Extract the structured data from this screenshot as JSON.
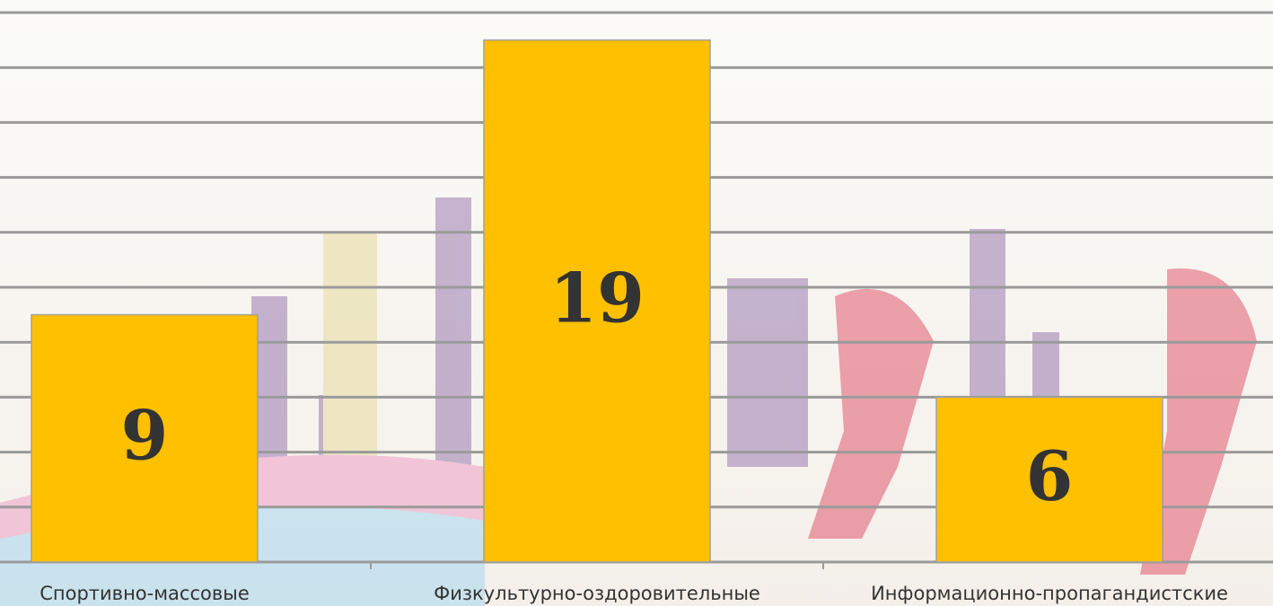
{
  "chart_data": {
    "type": "bar",
    "categories": [
      "Спортивно-массовые",
      "Физкультурно-оздоровительные",
      "Информационно-пропагандистские"
    ],
    "values": [
      9,
      19,
      6
    ],
    "color": "#ffc000",
    "ylim": [
      0,
      20
    ],
    "yticks": [
      0,
      2,
      4,
      6,
      8,
      10,
      12,
      14,
      16,
      18,
      20
    ],
    "grid": true
  }
}
